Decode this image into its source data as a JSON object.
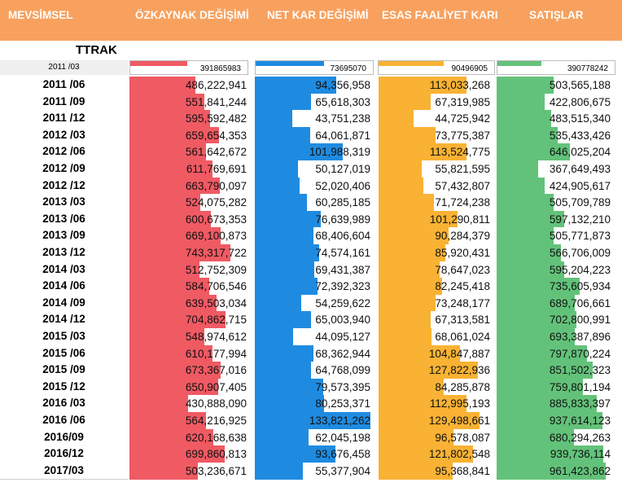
{
  "title": "TTRAK",
  "headers": {
    "period": "MEVSİMSEL",
    "equity": "ÖZKAYNAK DEĞİŞİMİ",
    "net": "NET KAR DEĞİŞİMİ",
    "operating": "ESAS FAALİYET KARI",
    "sales": "SATIŞLAR"
  },
  "colors": {
    "header": "#f8a15e",
    "equity": "#f05a63",
    "net": "#1f8be0",
    "operating": "#f9b233",
    "sales": "#63c27a"
  },
  "first_row": {
    "period": "2011 /03",
    "equity": "391865983",
    "net": "73695070",
    "operating": "90496905",
    "sales": "390778242"
  },
  "rows": [
    {
      "period": "2011 /06",
      "equity": "486,222,941",
      "net": "94,356,958",
      "operating": "113,033,268",
      "sales": "503,565,188"
    },
    {
      "period": "2011 /09",
      "equity": "551,841,244",
      "net": "65,618,303",
      "operating": "67,319,985",
      "sales": "422,806,675"
    },
    {
      "period": "2011 /12",
      "equity": "595,592,482",
      "net": "43,751,238",
      "operating": "44,725,942",
      "sales": "483,515,340"
    },
    {
      "period": "2012 /03",
      "equity": "659,654,353",
      "net": "64,061,871",
      "operating": "73,775,387",
      "sales": "535,433,426"
    },
    {
      "period": "2012 /06",
      "equity": "561,642,672",
      "net": "101,988,319",
      "operating": "113,524,775",
      "sales": "646,025,204"
    },
    {
      "period": "2012 /09",
      "equity": "611,769,691",
      "net": "50,127,019",
      "operating": "55,821,595",
      "sales": "367,649,493"
    },
    {
      "period": "2012 /12",
      "equity": "663,790,097",
      "net": "52,020,406",
      "operating": "57,432,807",
      "sales": "424,905,617"
    },
    {
      "period": "2013 /03",
      "equity": "524,075,282",
      "net": "60,285,185",
      "operating": "71,724,238",
      "sales": "505,709,789"
    },
    {
      "period": "2013 /06",
      "equity": "600,673,353",
      "net": "76,639,989",
      "operating": "101,290,811",
      "sales": "597,132,210"
    },
    {
      "period": "2013 /09",
      "equity": "669,100,873",
      "net": "68,406,604",
      "operating": "90,284,379",
      "sales": "505,771,873"
    },
    {
      "period": "2013 /12",
      "equity": "743,317,722",
      "net": "74,574,161",
      "operating": "85,920,431",
      "sales": "566,706,009"
    },
    {
      "period": "2014 /03",
      "equity": "512,752,309",
      "net": "69,431,387",
      "operating": "78,647,023",
      "sales": "595,204,223"
    },
    {
      "period": "2014 /06",
      "equity": "584,706,546",
      "net": "72,392,323",
      "operating": "82,245,418",
      "sales": "735,605,934"
    },
    {
      "period": "2014 /09",
      "equity": "639,503,034",
      "net": "54,259,622",
      "operating": "73,248,177",
      "sales": "689,706,661"
    },
    {
      "period": "2014 /12",
      "equity": "704,862,715",
      "net": "65,003,940",
      "operating": "67,313,581",
      "sales": "702,800,991"
    },
    {
      "period": "2015 /03",
      "equity": "548,974,612",
      "net": "44,095,127",
      "operating": "68,061,024",
      "sales": "693,387,896"
    },
    {
      "period": "2015 /06",
      "equity": "610,177,994",
      "net": "68,362,944",
      "operating": "104,847,887",
      "sales": "797,870,224"
    },
    {
      "period": "2015 /09",
      "equity": "673,367,016",
      "net": "64,768,099",
      "operating": "127,822,936",
      "sales": "851,502,323"
    },
    {
      "period": "2015 /12",
      "equity": "650,907,405",
      "net": "79,573,395",
      "operating": "84,285,878",
      "sales": "759,801,194"
    },
    {
      "period": "2016 /03",
      "equity": "430,888,090",
      "net": "80,253,371",
      "operating": "112,995,193",
      "sales": "885,833,397"
    },
    {
      "period": "2016 /06",
      "equity": "564,216,925",
      "net": "133,821,262",
      "operating": "129,498,661",
      "sales": "937,614,123"
    },
    {
      "period": "2016/09",
      "equity": "620,168,638",
      "net": "62,045,198",
      "operating": "96,578,087",
      "sales": "680,294,263"
    },
    {
      "period": "2016/12",
      "equity": "699,860,813",
      "net": "93,676,458",
      "operating": "121,802,548",
      "sales": "939,736,114"
    },
    {
      "period": "2017/03",
      "equity": "503,236,671",
      "net": "55,377,904",
      "operating": "95,368,841",
      "sales": "961,423,862"
    }
  ]
}
